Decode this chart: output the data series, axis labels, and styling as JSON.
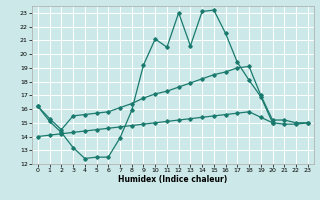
{
  "title": "",
  "xlabel": "Humidex (Indice chaleur)",
  "xlim": [
    -0.5,
    23.5
  ],
  "ylim": [
    12,
    23.5
  ],
  "yticks": [
    12,
    13,
    14,
    15,
    16,
    17,
    18,
    19,
    20,
    21,
    22,
    23
  ],
  "xticks": [
    0,
    1,
    2,
    3,
    4,
    5,
    6,
    7,
    8,
    9,
    10,
    11,
    12,
    13,
    14,
    15,
    16,
    17,
    18,
    19,
    20,
    21,
    22,
    23
  ],
  "bg_color": "#cce8e8",
  "line_color": "#1a7a6e",
  "grid_color": "#ffffff",
  "line1_x": [
    0,
    1,
    2,
    3,
    4,
    5,
    6,
    7,
    8,
    9,
    10,
    11,
    12,
    13,
    14,
    15,
    16,
    17,
    18,
    19,
    20
  ],
  "line1_y": [
    16.2,
    15.1,
    14.3,
    13.2,
    12.4,
    12.5,
    12.5,
    13.9,
    15.9,
    19.2,
    21.1,
    20.5,
    23.0,
    20.6,
    23.1,
    23.2,
    21.5,
    19.4,
    18.1,
    16.9,
    15.0
  ],
  "line2_x": [
    0,
    1,
    2,
    3,
    4,
    5,
    6,
    7,
    8,
    9,
    10,
    11,
    12,
    13,
    14,
    15,
    16,
    17,
    18,
    19,
    20,
    21,
    22,
    23
  ],
  "line2_y": [
    16.2,
    15.3,
    14.5,
    15.5,
    15.6,
    15.7,
    15.8,
    16.1,
    16.4,
    16.8,
    17.1,
    17.3,
    17.6,
    17.9,
    18.2,
    18.5,
    18.7,
    19.0,
    19.1,
    17.0,
    15.2,
    15.2,
    15.0,
    15.0
  ],
  "line3_x": [
    0,
    1,
    2,
    3,
    4,
    5,
    6,
    7,
    8,
    9,
    10,
    11,
    12,
    13,
    14,
    15,
    16,
    17,
    18,
    19,
    20,
    21,
    22,
    23
  ],
  "line3_y": [
    14.0,
    14.1,
    14.2,
    14.3,
    14.4,
    14.5,
    14.6,
    14.7,
    14.8,
    14.9,
    15.0,
    15.1,
    15.2,
    15.3,
    15.4,
    15.5,
    15.6,
    15.7,
    15.8,
    15.4,
    15.0,
    14.9,
    14.9,
    15.0
  ]
}
